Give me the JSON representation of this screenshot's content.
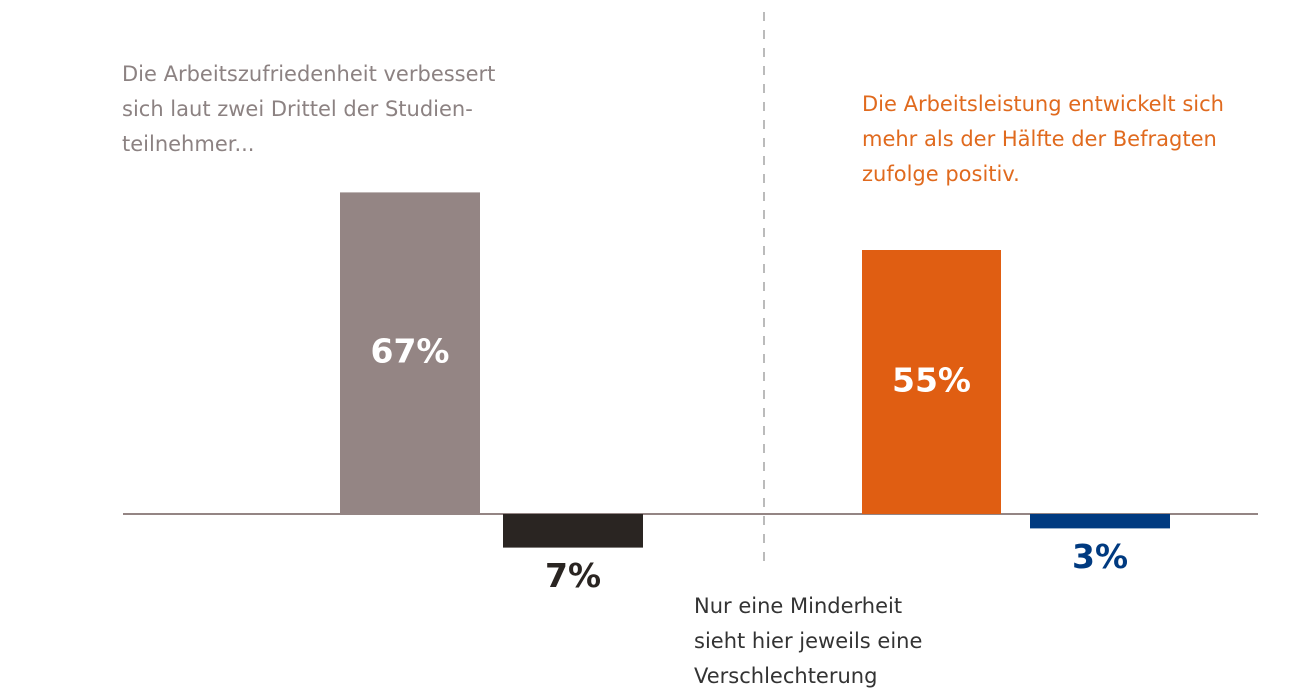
{
  "chart_data": {
    "type": "bar",
    "values": [
      67,
      -7,
      55,
      -3
    ],
    "value_labels": [
      "67%",
      "7%",
      "55%",
      "3%"
    ],
    "colors": [
      "#948584",
      "#2a2522",
      "#e05e12",
      "#003a80"
    ],
    "label_colors": [
      "#ffffff",
      "#2a2522",
      "#ffffff",
      "#003a80"
    ],
    "annotations": [
      {
        "lines": [
          "Die Arbeitszufriedenheit verbessert",
          "sich laut zwei Drittel der Studien-",
          "teilnehmer..."
        ],
        "color": "#8c8282"
      },
      {
        "lines": [
          "Die Arbeitsleistung entwickelt sich",
          "mehr als der Hälfte der Befragten",
          "zufolge positiv."
        ],
        "color": "#e06a1e"
      },
      {
        "lines": [
          "Nur eine Minderheit",
          "sieht hier jeweils eine",
          "Verschlechterung"
        ],
        "color": "#333333"
      }
    ]
  }
}
